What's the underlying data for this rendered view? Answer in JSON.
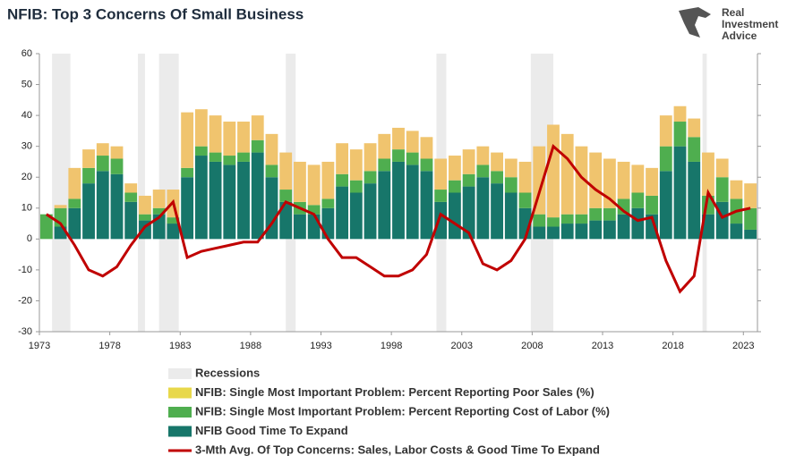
{
  "chart_data": {
    "type": "stacked-bar-line",
    "title": "NFIB: Top 3 Concerns Of Small Business",
    "brand": [
      "Real",
      "Investment",
      "Advice"
    ],
    "recession_label": "Recessions",
    "recession_color": "#ebebeb",
    "recessions": [
      [
        1973.9,
        1975.2
      ],
      [
        1980.0,
        1980.5
      ],
      [
        1981.5,
        1982.9
      ],
      [
        1990.5,
        1991.2
      ],
      [
        2001.2,
        2001.9
      ],
      [
        2007.9,
        2009.5
      ],
      [
        2020.1,
        2020.4
      ]
    ],
    "x": [
      1973,
      1974,
      1975,
      1976,
      1977,
      1978,
      1979,
      1980,
      1981,
      1982,
      1983,
      1984,
      1985,
      1986,
      1987,
      1988,
      1989,
      1990,
      1991,
      1992,
      1993,
      1994,
      1995,
      1996,
      1997,
      1998,
      1999,
      2000,
      2001,
      2002,
      2003,
      2004,
      2005,
      2006,
      2007,
      2008,
      2009,
      2010,
      2011,
      2012,
      2013,
      2014,
      2015,
      2016,
      2017,
      2018,
      2019,
      2020,
      2021,
      2022,
      2023
    ],
    "xlim": [
      1973,
      2024
    ],
    "xticks": [
      1973,
      1978,
      1983,
      1988,
      1993,
      1998,
      2003,
      2008,
      2013,
      2018,
      2023
    ],
    "ylim": [
      -30,
      60
    ],
    "yticks": [
      -30,
      -20,
      -10,
      0,
      10,
      20,
      30,
      40,
      50,
      60
    ],
    "series": [
      {
        "name": "NFIB: Single Most Important Problem: Percent Reporting Poor Sales (%)",
        "kind": "bar",
        "color": "#f0c46e",
        "legend_color": "#e8d84a",
        "values": [
          0,
          1,
          10,
          6,
          4,
          4,
          3,
          6,
          6,
          9,
          18,
          12,
          12,
          11,
          10,
          8,
          10,
          12,
          13,
          13,
          12,
          10,
          10,
          9,
          8,
          7,
          7,
          7,
          10,
          8,
          8,
          6,
          6,
          6,
          10,
          22,
          30,
          26,
          22,
          18,
          16,
          12,
          9,
          9,
          10,
          5,
          6,
          14,
          6,
          6,
          8
        ]
      },
      {
        "name": "NFIB: Single Most Important Problem: Percent Reporting Cost of Labor (%)",
        "kind": "bar",
        "color": "#4fae4f",
        "values": [
          8,
          6,
          3,
          5,
          5,
          5,
          3,
          2,
          2,
          2,
          3,
          3,
          3,
          3,
          3,
          4,
          4,
          4,
          4,
          3,
          3,
          4,
          4,
          4,
          4,
          4,
          4,
          4,
          4,
          4,
          4,
          4,
          4,
          5,
          5,
          4,
          3,
          3,
          3,
          4,
          4,
          5,
          5,
          6,
          8,
          8,
          8,
          6,
          8,
          8,
          7
        ]
      },
      {
        "name": "NFIB Good Time To Expand",
        "kind": "bar",
        "color": "#17766a",
        "values": [
          0,
          4,
          10,
          18,
          22,
          21,
          12,
          6,
          8,
          5,
          20,
          27,
          25,
          24,
          25,
          28,
          20,
          12,
          8,
          8,
          10,
          17,
          15,
          18,
          22,
          25,
          24,
          22,
          12,
          15,
          17,
          20,
          18,
          15,
          10,
          4,
          4,
          5,
          5,
          6,
          6,
          8,
          10,
          8,
          22,
          30,
          25,
          8,
          12,
          5,
          3
        ]
      },
      {
        "name": "3-Mth Avg. Of Top Concerns: Sales, Labor Costs & Good Time To Expand",
        "kind": "line",
        "color": "#c00000",
        "values": [
          8,
          5,
          -2,
          -10,
          -12,
          -9,
          -2,
          4,
          7,
          12,
          -6,
          -4,
          -3,
          -2,
          -1,
          -1,
          5,
          12,
          10,
          8,
          0,
          -6,
          -6,
          -9,
          -12,
          -12,
          -10,
          -5,
          8,
          5,
          2,
          -8,
          -10,
          -7,
          0,
          15,
          30,
          26,
          20,
          16,
          13,
          9,
          6,
          7,
          -7,
          -17,
          -12,
          15,
          7,
          9,
          10
        ]
      }
    ]
  }
}
